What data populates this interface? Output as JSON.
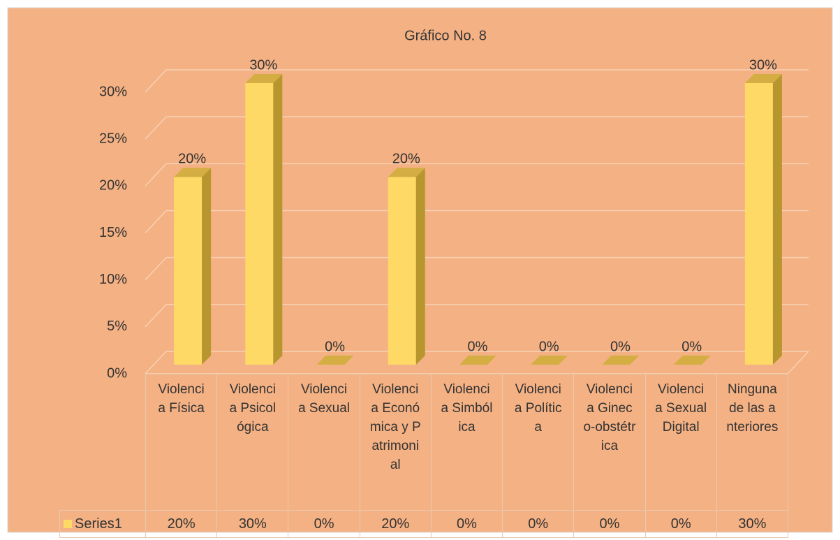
{
  "chart_data": {
    "type": "bar3d",
    "title": "Gráfico No. 8",
    "categories": [
      "Violencia Física",
      "Violencia Psicológica",
      "Violencia Sexual",
      "Violencia Económica y Patrimonial",
      "Violencia Simbólica",
      "Violencia Política",
      "Violencia Gineco-obstétrica",
      "Violencia Sexual Digital",
      "Ninguna de las anteriores"
    ],
    "series": [
      {
        "name": "Series1",
        "color": "#FFD966",
        "values": [
          20,
          30,
          0,
          20,
          0,
          0,
          0,
          0,
          30
        ],
        "value_labels": [
          "20%",
          "30%",
          "0%",
          "20%",
          "0%",
          "0%",
          "0%",
          "0%",
          "30%"
        ]
      }
    ],
    "ylim": [
      0,
      30
    ],
    "yticks": [
      {
        "value": 0,
        "label": "0%"
      },
      {
        "value": 5,
        "label": "5%"
      },
      {
        "value": 10,
        "label": "10%"
      },
      {
        "value": 15,
        "label": "15%"
      },
      {
        "value": 20,
        "label": "20%"
      },
      {
        "value": 25,
        "label": "25%"
      },
      {
        "value": 30,
        "label": "30%"
      }
    ],
    "grid": true,
    "data_table": true
  }
}
